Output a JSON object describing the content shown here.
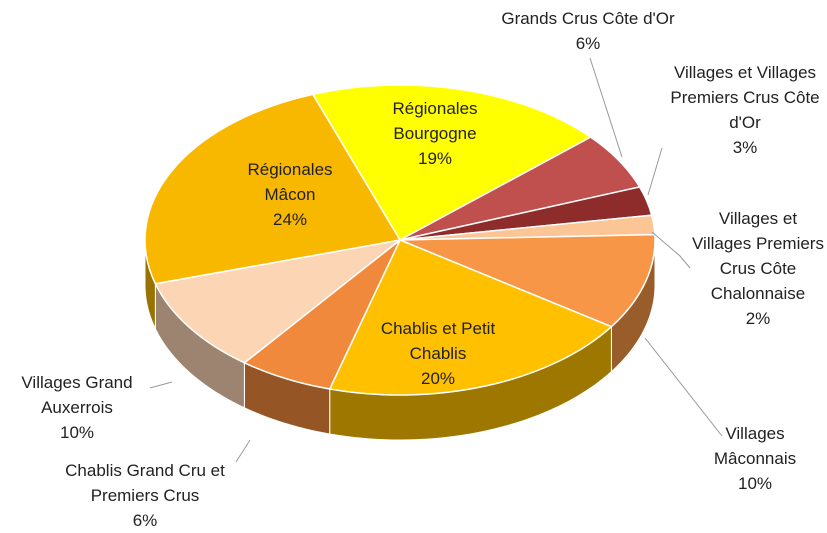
{
  "chart_data": {
    "type": "pie",
    "categories": [
      "Régionales Bourgogne",
      "Grands Crus Côte d'Or",
      "Villages et Villages Premiers Crus Côte d'Or",
      "Villages et Villages Premiers Crus Côte Chalonnaise",
      "Villages Mâconnais",
      "Chablis et Petit Chablis",
      "Chablis Grand Cru et Premiers Crus",
      "Villages Grand Auxerrois",
      "Régionales Mâcon"
    ],
    "values": [
      19,
      6,
      3,
      2,
      10,
      20,
      6,
      10,
      24
    ],
    "value_labels": [
      "19%",
      "6%",
      "3%",
      "2%",
      "10%",
      "20%",
      "6%",
      "10%",
      "24%"
    ],
    "colors": [
      "#ffff00",
      "#c0504d",
      "#8e2b2b",
      "#fbc596",
      "#f79646",
      "#ffc000",
      "#f0893b",
      "#fcd5b4",
      "#f9b800"
    ]
  }
}
